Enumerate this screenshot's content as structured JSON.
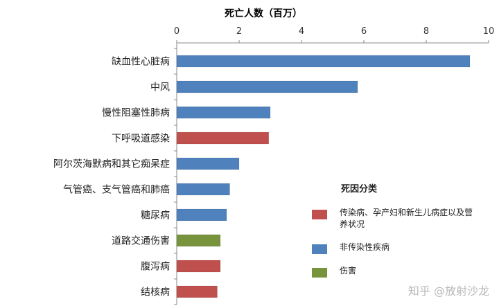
{
  "chart_data": {
    "type": "bar",
    "orientation": "horizontal",
    "title": "死亡人数（百万）",
    "xlim": [
      0,
      10
    ],
    "ticks": [
      0,
      2,
      4,
      6,
      8,
      10
    ],
    "categories": [
      "缺血性心脏病",
      "中风",
      "慢性阻塞性肺病",
      "下呼吸道感染",
      "阿尔茨海默病和其它痴呆症",
      "气管癌、支气管癌和肺癌",
      "糖尿病",
      "道路交通伤害",
      "腹泻病",
      "结核病"
    ],
    "values": [
      9.4,
      5.8,
      3.0,
      2.95,
      2.0,
      1.7,
      1.6,
      1.4,
      1.4,
      1.3
    ],
    "groups": [
      "nc",
      "nc",
      "nc",
      "c",
      "nc",
      "nc",
      "nc",
      "i",
      "c",
      "c"
    ],
    "grid": false,
    "legend": {
      "title": "死因分类",
      "position": "right",
      "items": [
        {
          "key": "c",
          "label": "传染病、孕产妇和新生儿病症以及营养状况",
          "color": "#c0504d"
        },
        {
          "key": "nc",
          "label": "非传染性疾病",
          "color": "#4f81bd"
        },
        {
          "key": "i",
          "label": "伤害",
          "color": "#77933c"
        }
      ]
    }
  },
  "watermark": "知乎 @放射沙龙"
}
